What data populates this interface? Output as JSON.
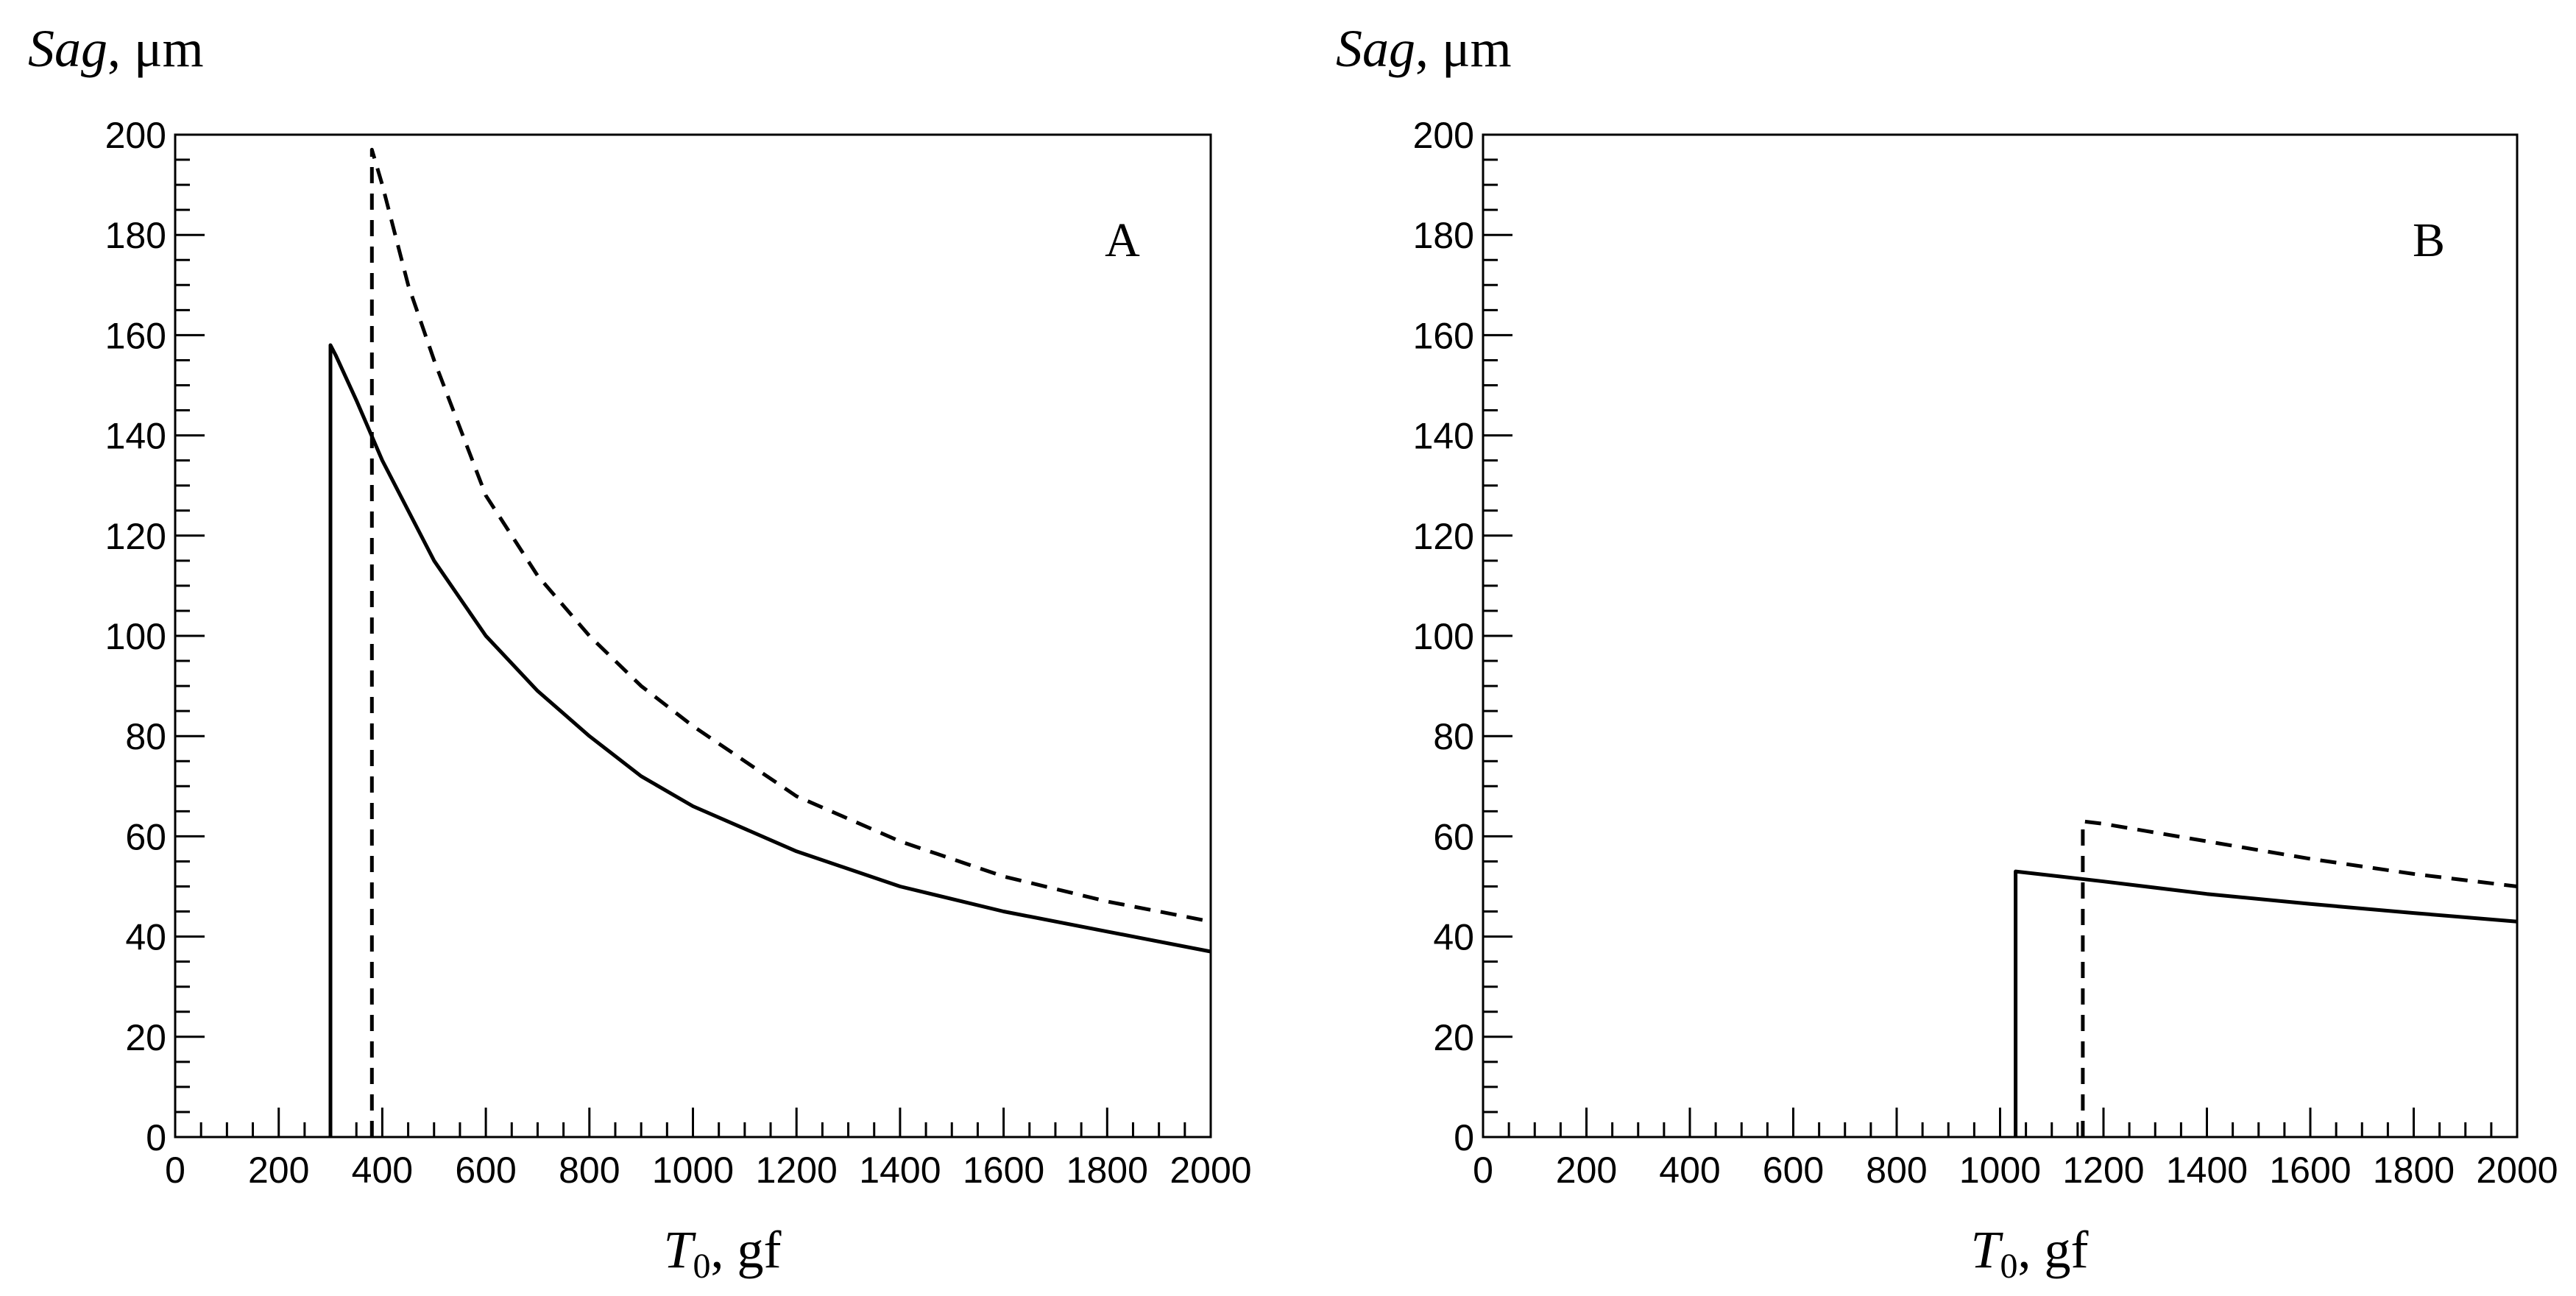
{
  "chart_data": [
    {
      "type": "line",
      "panel_label": "A",
      "ylabel_italic": "Sag",
      "ylabel_rest": ", μm",
      "xlabel_main": "T",
      "xlabel_sub": "0",
      "xlabel_rest": ", gf",
      "xlim": [
        0,
        2000
      ],
      "ylim": [
        0,
        200
      ],
      "xticks": [
        0,
        200,
        400,
        600,
        800,
        1000,
        1200,
        1400,
        1600,
        1800,
        2000
      ],
      "yticks": [
        0,
        20,
        40,
        60,
        80,
        100,
        120,
        140,
        160,
        180,
        200
      ],
      "grid": false,
      "series": [
        {
          "style": "solid",
          "points": [
            [
              300,
              0
            ],
            [
              300,
              158
            ],
            [
              310,
              156
            ],
            [
              350,
              147
            ],
            [
              400,
              135
            ],
            [
              500,
              115
            ],
            [
              600,
              100
            ],
            [
              700,
              89
            ],
            [
              800,
              80
            ],
            [
              900,
              72
            ],
            [
              1000,
              66
            ],
            [
              1200,
              57
            ],
            [
              1400,
              50
            ],
            [
              1600,
              45
            ],
            [
              1800,
              41
            ],
            [
              2000,
              37
            ]
          ]
        },
        {
          "style": "dashed",
          "points": [
            [
              380,
              0
            ],
            [
              380,
              197
            ],
            [
              400,
              190
            ],
            [
              450,
              170
            ],
            [
              500,
              155
            ],
            [
              600,
              128
            ],
            [
              700,
              112
            ],
            [
              800,
              100
            ],
            [
              900,
              90
            ],
            [
              1000,
              82
            ],
            [
              1200,
              68
            ],
            [
              1400,
              59
            ],
            [
              1600,
              52
            ],
            [
              1800,
              47
            ],
            [
              2000,
              43
            ]
          ]
        }
      ]
    },
    {
      "type": "line",
      "panel_label": "B",
      "ylabel_italic": "Sag",
      "ylabel_rest": ", μm",
      "xlabel_main": "T",
      "xlabel_sub": "0",
      "xlabel_rest": ", gf",
      "xlim": [
        0,
        2000
      ],
      "ylim": [
        0,
        200
      ],
      "xticks": [
        0,
        200,
        400,
        600,
        800,
        1000,
        1200,
        1400,
        1600,
        1800,
        2000
      ],
      "yticks": [
        0,
        20,
        40,
        60,
        80,
        100,
        120,
        140,
        160,
        180,
        200
      ],
      "grid": false,
      "series": [
        {
          "style": "solid",
          "points": [
            [
              1030,
              0
            ],
            [
              1030,
              53
            ],
            [
              1200,
              51
            ],
            [
              1400,
              48.5
            ],
            [
              1600,
              46.5
            ],
            [
              1800,
              44.7
            ],
            [
              2000,
              43
            ]
          ]
        },
        {
          "style": "dashed",
          "points": [
            [
              1160,
              0
            ],
            [
              1160,
              63
            ],
            [
              1200,
              62.5
            ],
            [
              1400,
              59
            ],
            [
              1600,
              55.5
            ],
            [
              1800,
              52.5
            ],
            [
              2000,
              50
            ]
          ]
        }
      ]
    }
  ]
}
